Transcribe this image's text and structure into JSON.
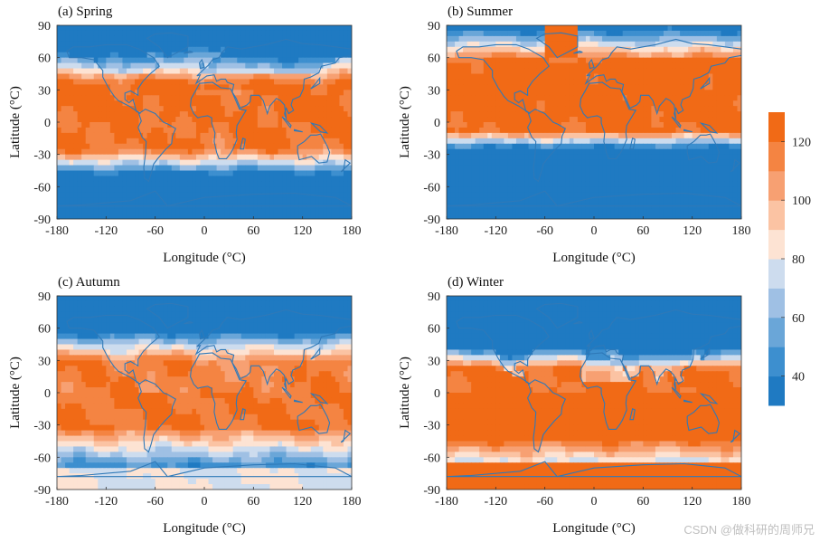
{
  "chart_data": {
    "type": "heatmap",
    "panels": [
      {
        "title": "(a) Spring",
        "season": "spring"
      },
      {
        "title": "(b) Summer",
        "season": "summer"
      },
      {
        "title": "(c) Autumn",
        "season": "autumn"
      },
      {
        "title": "(d) Winter",
        "season": "winter"
      }
    ],
    "xlabel": "Longitude (°C)",
    "ylabel": "Latitude (°C)",
    "x_ticks": [
      -180,
      -120,
      -60,
      0,
      60,
      120,
      180
    ],
    "y_ticks": [
      90,
      60,
      30,
      0,
      -30,
      -60,
      -90
    ],
    "xlim": [
      -180,
      180
    ],
    "ylim": [
      -90,
      90
    ],
    "colorbar": {
      "ticks": [
        40,
        60,
        80,
        100,
        120
      ],
      "range": [
        30,
        130
      ],
      "levels": [
        {
          "lo": 30,
          "hi": 40,
          "color": "#1f7ac2"
        },
        {
          "lo": 40,
          "hi": 50,
          "color": "#3d8fcf"
        },
        {
          "lo": 50,
          "hi": 60,
          "color": "#6aa6d8"
        },
        {
          "lo": 60,
          "hi": 70,
          "color": "#9fc0e4"
        },
        {
          "lo": 70,
          "hi": 80,
          "color": "#cddcee"
        },
        {
          "lo": 80,
          "hi": 90,
          "color": "#fde3d3"
        },
        {
          "lo": 90,
          "hi": 100,
          "color": "#fbc3a3"
        },
        {
          "lo": 100,
          "hi": 110,
          "color": "#f7a072"
        },
        {
          "lo": 110,
          "hi": 120,
          "color": "#f48442"
        },
        {
          "lo": 120,
          "hi": 130,
          "color": "#f16a16"
        }
      ]
    },
    "coast_color": "#2f79b8"
  },
  "watermark": "CSDN @做科研的周师兄"
}
